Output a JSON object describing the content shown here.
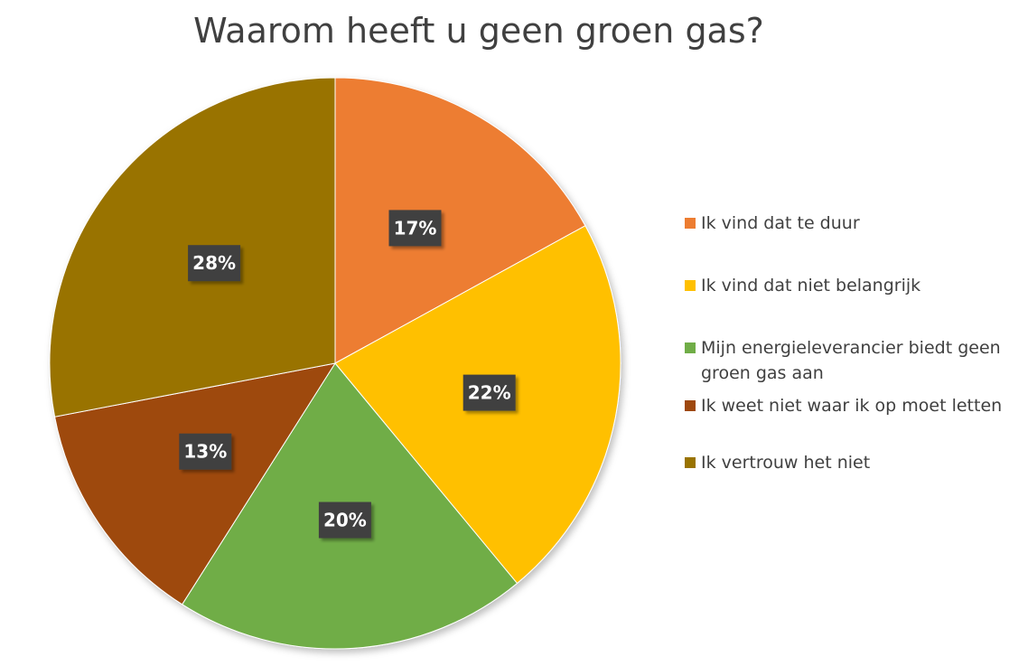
{
  "chart_data": {
    "type": "pie",
    "title": "Waarom heeft u geen groen gas?",
    "categories": [
      "Ik vind dat te duur",
      "Ik vind dat niet belangrijk",
      "Mijn energieleverancier biedt geen groen gas aan",
      "Ik weet niet waar ik op moet letten",
      "Ik vertrouw het niet"
    ],
    "values": [
      17,
      22,
      20,
      13,
      28
    ],
    "data_labels": [
      "17%",
      "22%",
      "20%",
      "13%",
      "28%"
    ],
    "colors": [
      "#ED7D31",
      "#FFC000",
      "#70AD47",
      "#9E480E",
      "#997300"
    ],
    "start_angle_deg": 0,
    "direction": "clockwise",
    "legend_position": "right",
    "legend_lines": [
      [
        "Ik vind dat te duur"
      ],
      [
        "Ik vind dat niet belangrijk"
      ],
      [
        "Mijn energieleverancier biedt geen",
        "groen gas aan"
      ],
      [
        "Ik weet niet waar ik op moet letten"
      ],
      [
        "Ik vertrouw het niet"
      ]
    ]
  },
  "label_style": {
    "background": "#404040"
  }
}
